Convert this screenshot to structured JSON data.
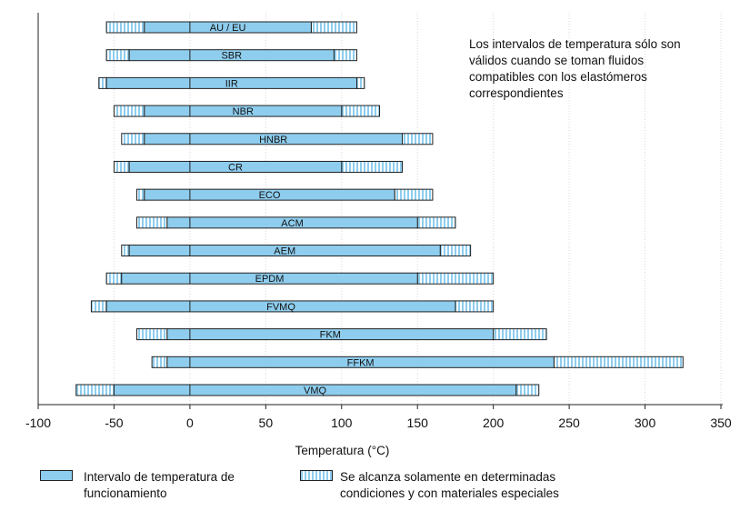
{
  "chart_data": {
    "type": "bar",
    "orientation": "horizontal-range",
    "xlabel": "Temperatura (°C)",
    "xlim": [
      -100,
      350
    ],
    "xticks": [
      -100,
      -50,
      0,
      50,
      100,
      150,
      200,
      250,
      300,
      350
    ],
    "grid": true,
    "annotation": "Los intervalos de temperatura sólo son válidos cuando se toman fluidos compatibles con los elastómeros correspondientes",
    "series": [
      {
        "name": "Intervalo de temperatura de funcionamiento",
        "style": "solid"
      },
      {
        "name": "Se alcanza solamente en determinadas condiciones y con materiales especiales",
        "style": "hatched"
      }
    ],
    "categories": [
      "AU / EU",
      "SBR",
      "IIR",
      "NBR",
      "HNBR",
      "CR",
      "ECO",
      "ACM",
      "AEM",
      "EPDM",
      "FVMQ",
      "FKM",
      "FFKM",
      "VMQ"
    ],
    "ranges": [
      {
        "ext_min": -55,
        "min": -30,
        "max": 80,
        "ext_max": 110
      },
      {
        "ext_min": -55,
        "min": -40,
        "max": 95,
        "ext_max": 110
      },
      {
        "ext_min": -60,
        "min": -55,
        "max": 110,
        "ext_max": 115
      },
      {
        "ext_min": -50,
        "min": -30,
        "max": 100,
        "ext_max": 125
      },
      {
        "ext_min": -45,
        "min": -30,
        "max": 140,
        "ext_max": 160
      },
      {
        "ext_min": -50,
        "min": -40,
        "max": 100,
        "ext_max": 140
      },
      {
        "ext_min": -35,
        "min": -30,
        "max": 135,
        "ext_max": 160
      },
      {
        "ext_min": -35,
        "min": -15,
        "max": 150,
        "ext_max": 175
      },
      {
        "ext_min": -45,
        "min": -40,
        "max": 165,
        "ext_max": 185
      },
      {
        "ext_min": -55,
        "min": -45,
        "max": 150,
        "ext_max": 200
      },
      {
        "ext_min": -65,
        "min": -55,
        "max": 175,
        "ext_max": 200
      },
      {
        "ext_min": -35,
        "min": -15,
        "max": 200,
        "ext_max": 235
      },
      {
        "ext_min": -25,
        "min": -15,
        "max": 240,
        "ext_max": 325
      },
      {
        "ext_min": -75,
        "min": -50,
        "max": 215,
        "ext_max": 230
      }
    ],
    "colors": {
      "solid": "#8ecdee",
      "outline": "#222222",
      "grid": "#d8d8d8"
    }
  }
}
